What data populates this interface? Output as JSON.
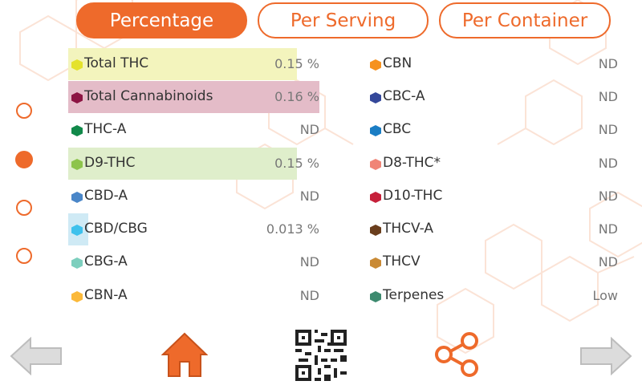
{
  "tabs": [
    {
      "label": "Percentage",
      "active": true
    },
    {
      "label": "Per Serving",
      "active": false
    },
    {
      "label": "Per Container",
      "active": false
    }
  ],
  "page_dots": [
    {
      "active": false
    },
    {
      "active": true
    },
    {
      "active": false
    },
    {
      "active": false
    }
  ],
  "left_column": [
    {
      "name": "Total THC",
      "value": "0.15 %",
      "icon_color": "#e4e22c",
      "bar_color": "#f3f4bd",
      "bar_fraction": 0.91
    },
    {
      "name": "Total Cannabinoids",
      "value": "0.16 %",
      "icon_color": "#8c1543",
      "bar_color": "#e4bcc8",
      "bar_fraction": 1.0
    },
    {
      "name": "THC-A",
      "value": "ND",
      "icon_color": "#11894a",
      "bar_color": "",
      "bar_fraction": 0
    },
    {
      "name": "D9-THC",
      "value": "0.15 %",
      "icon_color": "#8dc44b",
      "bar_color": "#dfeecb",
      "bar_fraction": 0.91
    },
    {
      "name": "CBD-A",
      "value": "ND",
      "icon_color": "#4a86c8",
      "bar_color": "",
      "bar_fraction": 0
    },
    {
      "name": "CBD/CBG",
      "value": "0.013 %",
      "icon_color": "#3ec1ec",
      "bar_color": "#cfeaf5",
      "bar_fraction": 0.08
    },
    {
      "name": "CBG-A",
      "value": "ND",
      "icon_color": "#7dcfbe",
      "bar_color": "",
      "bar_fraction": 0
    },
    {
      "name": "CBN-A",
      "value": "ND",
      "icon_color": "#fbb93a",
      "bar_color": "",
      "bar_fraction": 0
    }
  ],
  "right_column": [
    {
      "name": "CBN",
      "value": "ND",
      "icon_color": "#f6921e"
    },
    {
      "name": "CBC-A",
      "value": "ND",
      "icon_color": "#34489a"
    },
    {
      "name": "CBC",
      "value": "ND",
      "icon_color": "#1a7dc4"
    },
    {
      "name": "D8-THC*",
      "value": "ND",
      "icon_color": "#f08577"
    },
    {
      "name": "D10-THC",
      "value": "ND",
      "icon_color": "#c6203a"
    },
    {
      "name": "THCV-A",
      "value": "ND",
      "icon_color": "#6a3e1d"
    },
    {
      "name": "THCV",
      "value": "ND",
      "icon_color": "#c98a35"
    },
    {
      "name": "Terpenes",
      "value": "Low",
      "icon_color": "#3d8a6f"
    }
  ],
  "bottom_bar": {
    "back_icon": "arrow-left-icon",
    "home_icon": "home-icon",
    "qr_icon": "qr-code-icon",
    "share_icon": "share-icon",
    "forward_icon": "arrow-right-icon"
  },
  "colors": {
    "accent": "#ee6a2b",
    "arrow_gray": "#d9d9d9"
  }
}
